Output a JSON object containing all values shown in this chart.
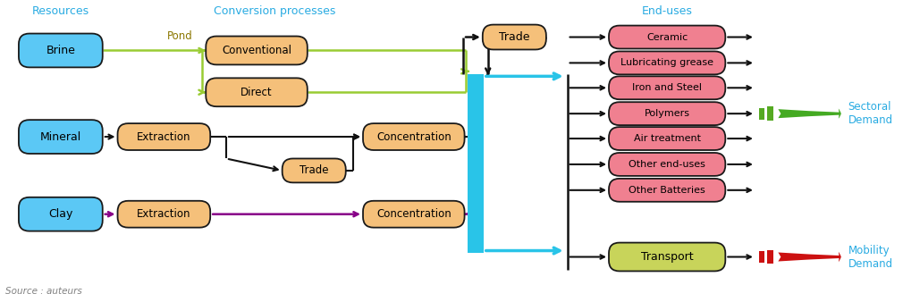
{
  "source_text": "Source : auteurs",
  "header_resources": "Resources",
  "header_conversion": "Conversion processes",
  "header_enduses": "End-uses",
  "header_color": "#29ABE2",
  "blue_box_color": "#5BC8F5",
  "orange_box_color": "#F5C07A",
  "pink_box_color": "#F08090",
  "yellow_green_box_color": "#C8D45A",
  "edge_color": "#1A1A1A",
  "end_uses": [
    "Ceramic",
    "Lubricating grease",
    "Iron and Steel",
    "Polymers",
    "Air treatment",
    "Other end-uses",
    "Other Batteries"
  ],
  "transport": "Transport",
  "sectoral_label": "Sectoral\nDemand",
  "mobility_label": "Mobility\nDemand",
  "pond_label": "Pond",
  "green_arrow_color": "#99CC33",
  "purple_arrow_color": "#880088",
  "black_arrow_color": "#111111",
  "blue_bar_color": "#29C4E8",
  "sectoral_arrow_color": "#44AA22",
  "mobility_arrow_color": "#CC1111",
  "green_bar_color": "#55AA22",
  "red_bar_color": "#CC1111"
}
